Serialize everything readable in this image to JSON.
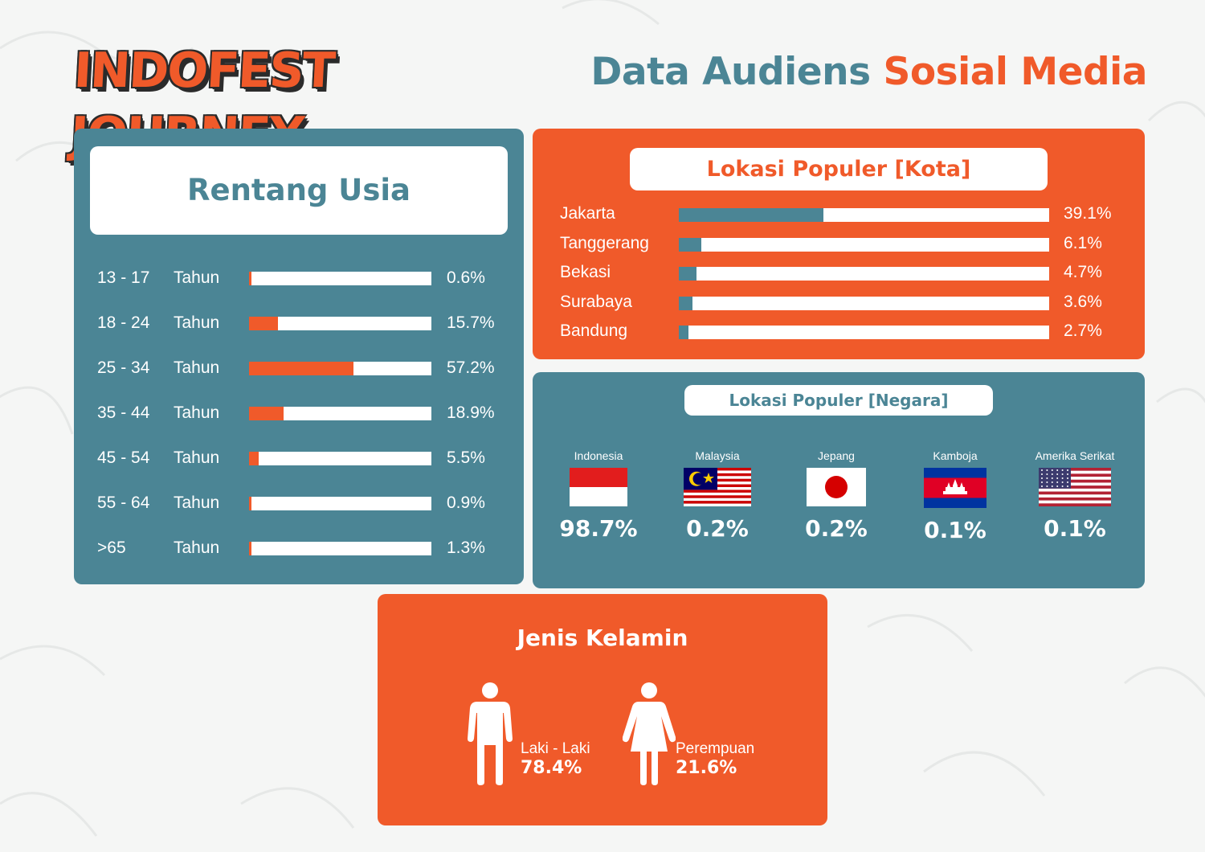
{
  "header": {
    "logo_text": "INDOFEST JOURNEY",
    "title_part1": "Data Audiens",
    "title_part2": "Sosial Media"
  },
  "colors": {
    "teal": "#4b8595",
    "orange": "#f05a2a",
    "white": "#ffffff"
  },
  "age": {
    "title": "Rentang Usia",
    "rows": [
      {
        "range": "13 - 17",
        "unit": "Tahun",
        "pct": 0.6,
        "label": "0.6%"
      },
      {
        "range": "18 - 24",
        "unit": "Tahun",
        "pct": 15.7,
        "label": "15.7%"
      },
      {
        "range": "25 - 34",
        "unit": "Tahun",
        "pct": 57.2,
        "label": "57.2%"
      },
      {
        "range": "35 - 44",
        "unit": "Tahun",
        "pct": 18.9,
        "label": "18.9%"
      },
      {
        "range": "45 - 54",
        "unit": "Tahun",
        "pct": 5.5,
        "label": "5.5%"
      },
      {
        "range": "55 - 64",
        "unit": "Tahun",
        "pct": 0.9,
        "label": "0.9%"
      },
      {
        "range": ">65",
        "unit": "Tahun",
        "pct": 1.3,
        "label": "1.3%"
      }
    ]
  },
  "city": {
    "title": "Lokasi Populer [Kota]",
    "rows": [
      {
        "name": "Jakarta",
        "pct": 39.1,
        "label": "39.1%"
      },
      {
        "name": "Tanggerang",
        "pct": 6.1,
        "label": "6.1%"
      },
      {
        "name": "Bekasi",
        "pct": 4.7,
        "label": "4.7%"
      },
      {
        "name": "Surabaya",
        "pct": 3.6,
        "label": "3.6%"
      },
      {
        "name": "Bandung",
        "pct": 2.7,
        "label": "2.7%"
      }
    ]
  },
  "country": {
    "title": "Lokasi Populer [Negara]",
    "items": [
      {
        "name": "Indonesia",
        "flag": "indonesia-flag-icon",
        "label": "98.7%"
      },
      {
        "name": "Malaysia",
        "flag": "malaysia-flag-icon",
        "label": "0.2%"
      },
      {
        "name": "Jepang",
        "flag": "japan-flag-icon",
        "label": "0.2%"
      },
      {
        "name": "Kamboja",
        "flag": "cambodia-flag-icon",
        "label": "0.1%"
      },
      {
        "name": "Amerika Serikat",
        "flag": "usa-flag-icon",
        "label": "0.1%"
      }
    ]
  },
  "gender": {
    "title": "Jenis Kelamin",
    "male": {
      "label": "Laki - Laki",
      "value": "78.4%",
      "icon": "male-figure-icon"
    },
    "female": {
      "label": "Perempuan",
      "value": "21.6%",
      "icon": "female-figure-icon"
    }
  },
  "chart_data": [
    {
      "type": "bar",
      "title": "Rentang Usia",
      "categories": [
        "13 - 17 Tahun",
        "18 - 24 Tahun",
        "25 - 34 Tahun",
        "35 - 44 Tahun",
        "45 - 54 Tahun",
        "55 - 64 Tahun",
        ">65 Tahun"
      ],
      "values": [
        0.6,
        15.7,
        57.2,
        18.9,
        5.5,
        0.9,
        1.3
      ],
      "ylim": [
        0,
        100
      ]
    },
    {
      "type": "bar",
      "title": "Lokasi Populer [Kota]",
      "categories": [
        "Jakarta",
        "Tanggerang",
        "Bekasi",
        "Surabaya",
        "Bandung"
      ],
      "values": [
        39.1,
        6.1,
        4.7,
        3.6,
        2.7
      ],
      "ylim": [
        0,
        100
      ]
    },
    {
      "type": "table",
      "title": "Lokasi Populer [Negara]",
      "categories": [
        "Indonesia",
        "Malaysia",
        "Jepang",
        "Kamboja",
        "Amerika Serikat"
      ],
      "values": [
        98.7,
        0.2,
        0.2,
        0.1,
        0.1
      ]
    },
    {
      "type": "table",
      "title": "Jenis Kelamin",
      "categories": [
        "Laki - Laki",
        "Perempuan"
      ],
      "values": [
        78.4,
        21.6
      ]
    }
  ]
}
